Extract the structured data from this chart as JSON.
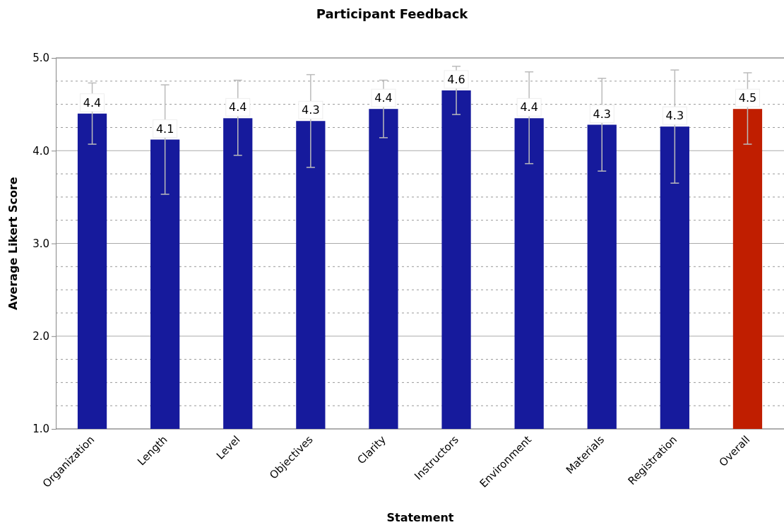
{
  "chart_data": {
    "type": "bar",
    "title": "Participant Feedback",
    "xlabel": "Statement",
    "ylabel": "Average Likert Score",
    "categories": [
      "Organization",
      "Length",
      "Level",
      "Objectives",
      "Clarity",
      "Instructors",
      "Environment",
      "Materials",
      "Registration",
      "Overall"
    ],
    "values": [
      4.4,
      4.12,
      4.35,
      4.32,
      4.45,
      4.65,
      4.35,
      4.28,
      4.26,
      4.45
    ],
    "colors": [
      "#161a9c",
      "#161a9c",
      "#161a9c",
      "#161a9c",
      "#161a9c",
      "#161a9c",
      "#161a9c",
      "#161a9c",
      "#161a9c",
      "#c01e00"
    ],
    "errors": [
      [
        4.07,
        4.73
      ],
      [
        3.53,
        4.71
      ],
      [
        3.95,
        4.76
      ],
      [
        3.82,
        4.82
      ],
      [
        4.14,
        4.76
      ],
      [
        4.39,
        4.91
      ],
      [
        3.86,
        4.85
      ],
      [
        3.78,
        4.78
      ],
      [
        3.65,
        4.87
      ],
      [
        4.07,
        4.84
      ]
    ],
    "value_labels": [
      "4.4",
      "4.1",
      "4.4",
      "4.3",
      "4.4",
      "4.6",
      "4.4",
      "4.3",
      "4.3",
      "4.5"
    ],
    "ylim": [
      1,
      5
    ],
    "yticks": [
      {
        "value": 1,
        "label": "1.0"
      },
      {
        "value": 1.25,
        "label": null
      },
      {
        "value": 1.5,
        "label": null
      },
      {
        "value": 1.75,
        "label": null
      },
      {
        "value": 2,
        "label": "2.0"
      },
      {
        "value": 2.25,
        "label": null
      },
      {
        "value": 2.5,
        "label": null
      },
      {
        "value": 2.75,
        "label": null
      },
      {
        "value": 3,
        "label": "3.0"
      },
      {
        "value": 3.25,
        "label": null
      },
      {
        "value": 3.5,
        "label": null
      },
      {
        "value": 3.75,
        "label": null
      },
      {
        "value": 4,
        "label": "4.0"
      },
      {
        "value": 4.25,
        "label": null
      },
      {
        "value": 4.5,
        "label": null
      },
      {
        "value": 4.75,
        "label": null
      },
      {
        "value": 5,
        "label": "5.0"
      }
    ],
    "grid": "y"
  }
}
